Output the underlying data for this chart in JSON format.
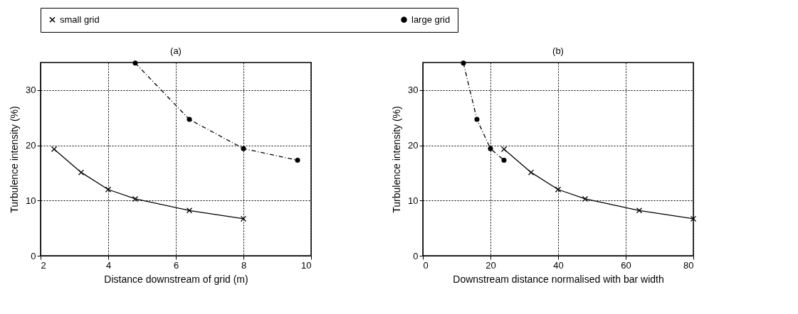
{
  "chart_data": [
    {
      "type": "line",
      "title": "(a)",
      "xlabel": "Distance downstream of grid (m)",
      "ylabel": "Turbulence intensity (%)",
      "xlim": [
        2,
        10
      ],
      "xticks": [
        2,
        4,
        6,
        8,
        10
      ],
      "ylim": [
        0,
        35
      ],
      "yticks": [
        0,
        10,
        20,
        30
      ],
      "grid": true,
      "legend": "top",
      "series": [
        {
          "name": "small grid",
          "color": "#000000",
          "marker": "cross",
          "line_style": "solid",
          "x": [
            2.4,
            3.2,
            4,
            4.8,
            6.4,
            8
          ],
          "values": [
            19.3,
            15.1,
            12,
            10.3,
            8.2,
            6.7
          ]
        },
        {
          "name": "large grid",
          "color": "#000000",
          "marker": "circle",
          "line_style": "dashed",
          "x": [
            4.8,
            6.4,
            8,
            9.6
          ],
          "values": [
            34.9,
            24.7,
            19.4,
            17.3
          ]
        }
      ]
    },
    {
      "type": "line",
      "title": "(b)",
      "xlabel": "Downstream distance normalised with bar width",
      "ylabel": "Turbulence intensity (%)",
      "xlim": [
        0,
        80
      ],
      "xticks": [
        0,
        20,
        40,
        60,
        80
      ],
      "ylim": [
        0,
        35
      ],
      "yticks": [
        0,
        10,
        20,
        30
      ],
      "grid": true,
      "legend": "top",
      "series": [
        {
          "name": "small grid",
          "color": "#000000",
          "marker": "cross",
          "line_style": "solid",
          "x": [
            24,
            32,
            40,
            48,
            64,
            80
          ],
          "values": [
            19.3,
            15.1,
            12,
            10.3,
            8.2,
            6.7
          ]
        },
        {
          "name": "large grid",
          "color": "#000000",
          "marker": "circle",
          "line_style": "dashed",
          "x": [
            12,
            16,
            20,
            24
          ],
          "values": [
            34.9,
            24.7,
            19.4,
            17.3
          ]
        }
      ]
    }
  ]
}
